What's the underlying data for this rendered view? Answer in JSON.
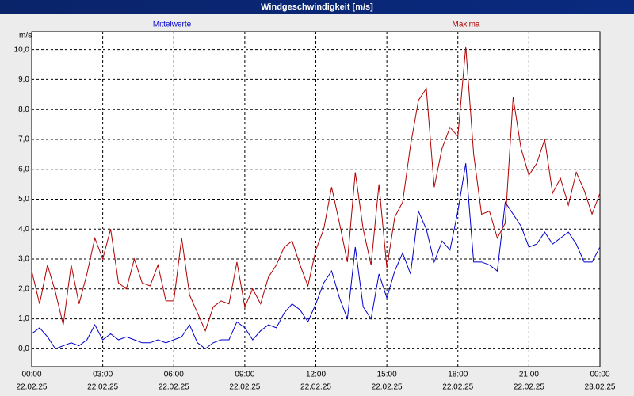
{
  "chart_data": {
    "type": "line",
    "title": "Windgeschwindigkeit [m/s]",
    "y_unit": "m/s",
    "x": [
      0,
      20,
      40,
      60,
      80,
      100,
      120,
      140,
      160,
      180,
      200,
      220,
      240,
      260,
      280,
      300,
      320,
      340,
      360,
      380,
      400,
      420,
      440,
      460,
      480,
      500,
      520,
      540,
      560,
      580,
      600,
      620,
      640,
      660,
      680,
      700,
      720,
      740,
      760,
      780,
      800,
      820,
      840,
      860,
      880,
      900,
      920,
      940,
      960,
      980,
      1000,
      1020,
      1040,
      1060,
      1080,
      1100,
      1120,
      1140,
      1160,
      1180,
      1200,
      1220,
      1240,
      1260,
      1280,
      1300,
      1320,
      1340,
      1360,
      1380,
      1400,
      1420,
      1440
    ],
    "series": [
      {
        "name": "Mittelwerte",
        "color": "#0000cc",
        "values": [
          0.5,
          0.7,
          0.4,
          0.0,
          0.1,
          0.2,
          0.1,
          0.3,
          0.8,
          0.3,
          0.5,
          0.3,
          0.4,
          0.3,
          0.2,
          0.2,
          0.3,
          0.2,
          0.3,
          0.4,
          0.8,
          0.2,
          0.0,
          0.2,
          0.3,
          0.3,
          0.9,
          0.7,
          0.3,
          0.6,
          0.8,
          0.7,
          1.2,
          1.5,
          1.3,
          0.9,
          1.5,
          2.2,
          2.6,
          1.7,
          1.0,
          3.4,
          1.4,
          1.0,
          2.5,
          1.7,
          2.6,
          3.2,
          2.5,
          4.6,
          4.0,
          2.9,
          3.6,
          3.3,
          4.6,
          6.2,
          2.9,
          2.9,
          2.8,
          2.6,
          4.9,
          4.5,
          4.1,
          3.4,
          3.5,
          3.9,
          3.5,
          3.7,
          3.9,
          3.5,
          2.9,
          2.9,
          3.4
        ]
      },
      {
        "name": "Maxima",
        "color": "#b00000",
        "values": [
          2.6,
          1.5,
          2.8,
          1.9,
          0.8,
          2.8,
          1.5,
          2.5,
          3.7,
          3.0,
          4.0,
          2.2,
          2.0,
          3.0,
          2.2,
          2.1,
          2.8,
          1.6,
          1.6,
          3.7,
          1.8,
          1.2,
          0.6,
          1.4,
          1.6,
          1.5,
          2.9,
          1.4,
          2.0,
          1.5,
          2.4,
          2.8,
          3.4,
          3.6,
          2.8,
          2.1,
          3.3,
          4.0,
          5.4,
          4.2,
          2.9,
          5.9,
          4.0,
          2.8,
          5.5,
          2.7,
          4.4,
          4.9,
          6.8,
          8.3,
          8.7,
          5.4,
          6.7,
          7.4,
          7.1,
          10.1,
          6.5,
          4.5,
          4.6,
          3.7,
          4.2,
          8.4,
          6.7,
          5.8,
          6.2,
          7.0,
          5.2,
          5.7,
          4.8,
          5.9,
          5.3,
          4.5,
          5.2
        ]
      }
    ],
    "xlim": [
      0,
      1440
    ],
    "xticks": [
      {
        "value": 0,
        "label": "00:00"
      },
      {
        "value": 180,
        "label": "03:00"
      },
      {
        "value": 360,
        "label": "06:00"
      },
      {
        "value": 540,
        "label": "09:00"
      },
      {
        "value": 720,
        "label": "12:00"
      },
      {
        "value": 900,
        "label": "15:00"
      },
      {
        "value": 1080,
        "label": "18:00"
      },
      {
        "value": 1260,
        "label": "21:00"
      },
      {
        "value": 1440,
        "label": "00:00"
      }
    ],
    "xtick_dates": [
      "22.02.25",
      "22.02.25",
      "22.02.25",
      "22.02.25",
      "22.02.25",
      "22.02.25",
      "22.02.25",
      "22.02.25",
      "23.02.25"
    ],
    "ylim": [
      -0.6,
      10.6
    ],
    "yticks": [
      {
        "value": 0,
        "label": "0,0"
      },
      {
        "value": 1,
        "label": "1,0"
      },
      {
        "value": 2,
        "label": "2,0"
      },
      {
        "value": 3,
        "label": "3,0"
      },
      {
        "value": 4,
        "label": "4,0"
      },
      {
        "value": 5,
        "label": "5,0"
      },
      {
        "value": 6,
        "label": "6,0"
      },
      {
        "value": 7,
        "label": "7,0"
      },
      {
        "value": 8,
        "label": "8,0"
      },
      {
        "value": 9,
        "label": "9,0"
      },
      {
        "value": 10,
        "label": "10,0"
      }
    ],
    "grid": true
  }
}
